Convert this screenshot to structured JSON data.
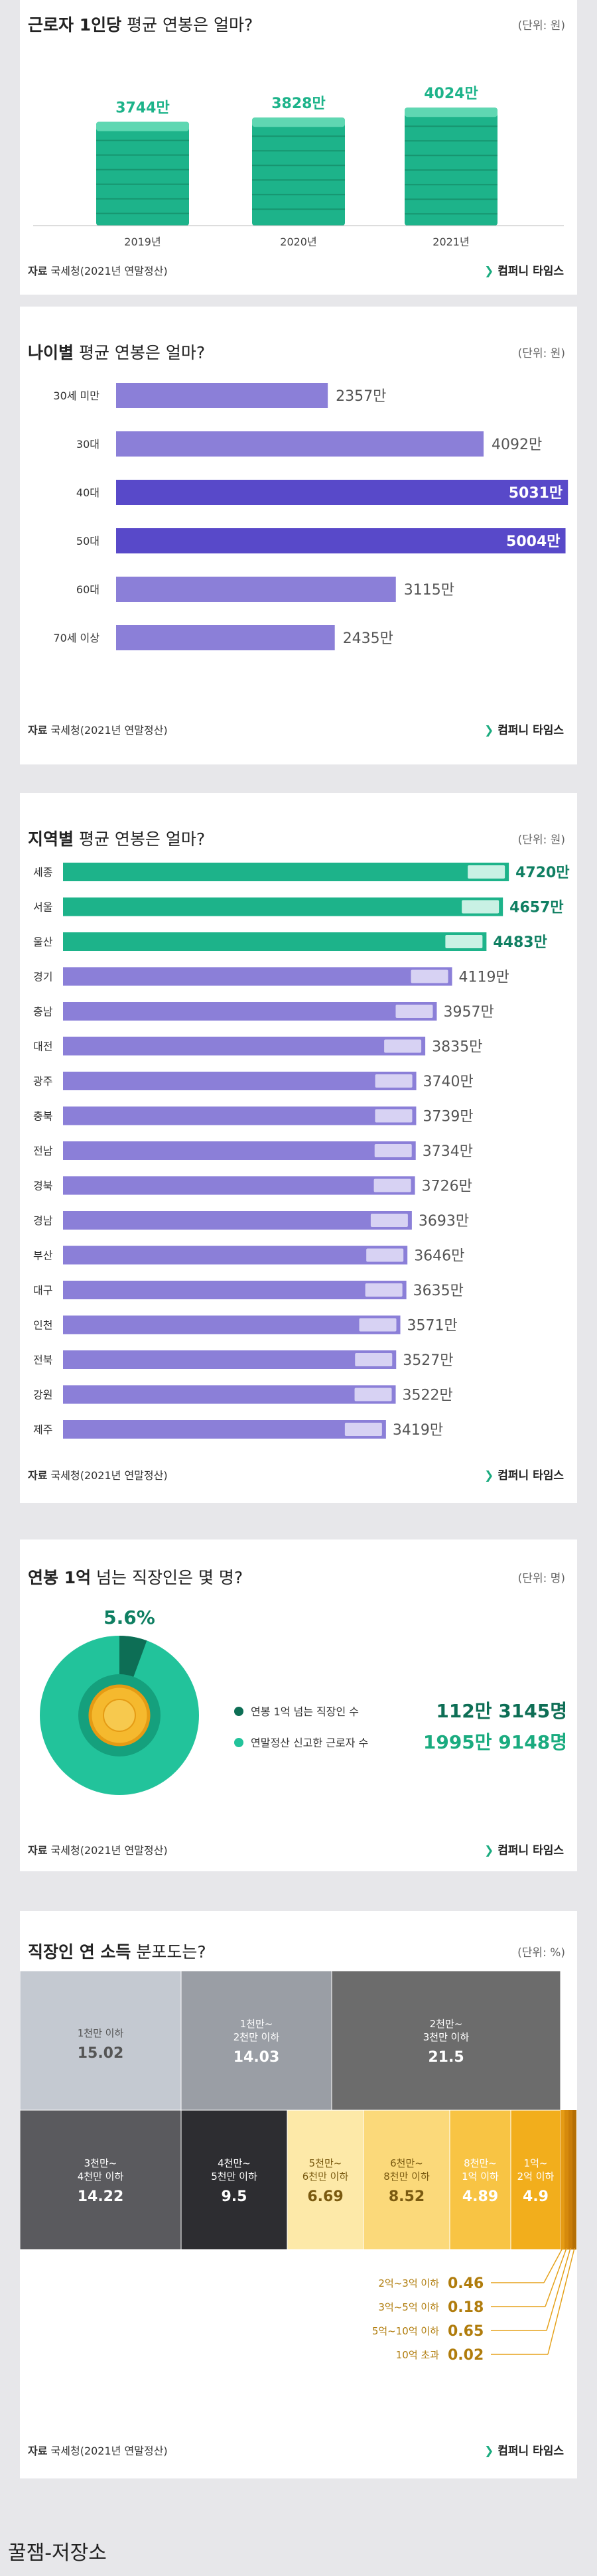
{
  "colors": {
    "green": "#1db38a",
    "greenDark": "#0f7f62",
    "purple": "#8b7fd8",
    "purpleDark": "#5849c9",
    "gray": "#666"
  },
  "card1": {
    "title_bold": "근로자 1인당",
    "title_thin": " 평균 연봉은 얼마?",
    "unit": "(단위: 원)",
    "source_label": "자료",
    "source": " 국세청(2021년 연말정산)",
    "brand": "컴퍼니 타임스"
  },
  "card2": {
    "title_bold": "나이별",
    "title_thin": " 평균 연봉은 얼마?",
    "unit": "(단위: 원)",
    "source_label": "자료",
    "source": " 국세청(2021년 연말정산)",
    "brand": "컴퍼니 타임스"
  },
  "card3": {
    "title_bold": "지역별",
    "title_thin": " 평균 연봉은 얼마?",
    "unit": "(단위: 원)",
    "source_label": "자료",
    "source": " 국세청(2021년 연말정산)",
    "brand": "컴퍼니 타임스"
  },
  "card4": {
    "title_bold": "연봉 1억",
    "title_thin": " 넘는 직장인은 몇 명?",
    "unit": "(단위: 명)",
    "source_label": "자료",
    "source": " 국세청(2021년 연말정산)",
    "brand": "컴퍼니 타임스"
  },
  "card5": {
    "title_bold": "직장인 연 소득",
    "title_thin": " 분포도는?",
    "unit": "(단위: %)",
    "source_label": "자료",
    "source": " 국세청(2021년 연말정산)",
    "brand": "컴퍼니 타임스"
  },
  "caption": "꿀잼-저장소",
  "chart_data": [
    {
      "type": "bar",
      "categories": [
        "2019년",
        "2020년",
        "2021년"
      ],
      "values": [
        3744,
        3828,
        4024
      ],
      "value_labels": [
        "3744만",
        "3828만",
        "4024만"
      ]
    },
    {
      "type": "bar",
      "orientation": "horizontal",
      "categories": [
        "30세 미만",
        "30대",
        "40대",
        "50대",
        "60대",
        "70세 이상"
      ],
      "values": [
        2357,
        4092,
        5031,
        5004,
        3115,
        2435
      ],
      "value_labels": [
        "2357만",
        "4092만",
        "5031만",
        "5004만",
        "3115만",
        "2435만"
      ],
      "highlight": [
        "40대",
        "50대"
      ]
    },
    {
      "type": "bar",
      "orientation": "horizontal",
      "categories": [
        "세종",
        "서울",
        "울산",
        "경기",
        "충남",
        "대전",
        "광주",
        "충북",
        "전남",
        "경북",
        "경남",
        "부산",
        "대구",
        "인천",
        "전북",
        "강원",
        "제주"
      ],
      "values": [
        4720,
        4657,
        4483,
        4119,
        3957,
        3835,
        3740,
        3739,
        3734,
        3726,
        3693,
        3646,
        3635,
        3571,
        3527,
        3522,
        3419
      ],
      "value_labels": [
        "4720만",
        "4657만",
        "4483만",
        "4119만",
        "3957만",
        "3835만",
        "3740만",
        "3739만",
        "3734만",
        "3726만",
        "3693만",
        "3646만",
        "3635만",
        "3571만",
        "3527만",
        "3522만",
        "3419만"
      ],
      "highlight": [
        "세종",
        "서울",
        "울산"
      ]
    },
    {
      "type": "pie",
      "slice_label": "5.6%",
      "values": [
        5.6,
        94.4
      ],
      "legend": [
        {
          "label": "연봉 1억 넘는 직장인 수",
          "value": "112만 3145명"
        },
        {
          "label": "연말정산 신고한 근로자 수",
          "value": "1995만 9148명"
        }
      ]
    },
    {
      "type": "table",
      "cells": [
        {
          "label": [
            "1천만 이하"
          ],
          "value": "15.02"
        },
        {
          "label": [
            "1천만~",
            "2천만 이하"
          ],
          "value": "14.03"
        },
        {
          "label": [
            "2천만~",
            "3천만 이하"
          ],
          "value": "21.5"
        },
        {
          "label": [
            "3천만~",
            "4천만 이하"
          ],
          "value": "14.22"
        },
        {
          "label": [
            "4천만~",
            "5천만 이하"
          ],
          "value": "9.5"
        },
        {
          "label": [
            "5천만~",
            "6천만 이하"
          ],
          "value": "6.69"
        },
        {
          "label": [
            "6천만~",
            "8천만 이하"
          ],
          "value": "8.52"
        },
        {
          "label": [
            "8천만~",
            "1억 이하"
          ],
          "value": "4.89"
        },
        {
          "label": [
            "1억~",
            "2억 이하"
          ],
          "value": "4.9"
        }
      ],
      "small": [
        {
          "label": "2억~3억 이하",
          "value": "0.46"
        },
        {
          "label": "3억~5억 이하",
          "value": "0.18"
        },
        {
          "label": "5억~10억 이하",
          "value": "0.65"
        },
        {
          "label": "10억 초과",
          "value": "0.02"
        }
      ]
    }
  ]
}
